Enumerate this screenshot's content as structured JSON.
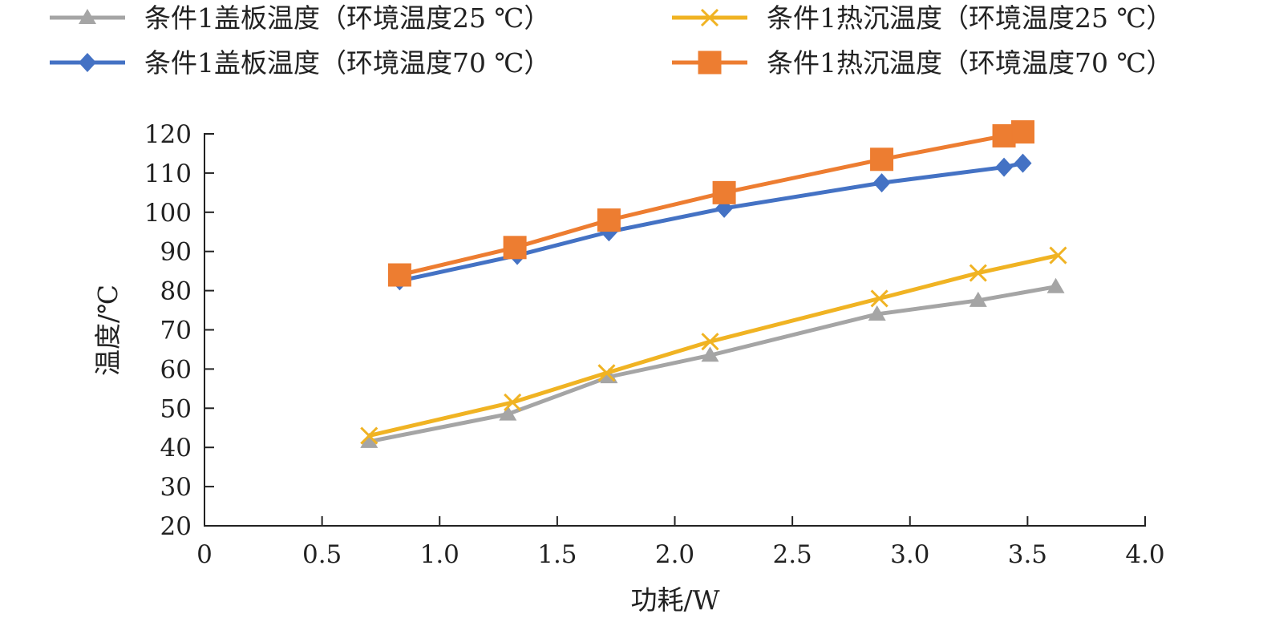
{
  "chart_data": {
    "type": "line",
    "xlabel": "功耗/W",
    "ylabel": "温度/℃",
    "xlim": [
      0,
      4.0
    ],
    "ylim": [
      20,
      120
    ],
    "xticks": [
      "0",
      "0.5",
      "1.0",
      "1.5",
      "2.0",
      "2.5",
      "3.0",
      "3.5",
      "4.0"
    ],
    "yticks": [
      "20",
      "30",
      "40",
      "50",
      "60",
      "70",
      "80",
      "90",
      "100",
      "110",
      "120"
    ],
    "grid": false,
    "legend_position": "top",
    "series": [
      {
        "name": "条件1盖板温度（环境温度25 ℃）",
        "color": "#A5A5A5",
        "marker": "triangle",
        "x": [
          0.7,
          1.29,
          1.72,
          2.15,
          2.86,
          3.29,
          3.62
        ],
        "y": [
          41.5,
          48.5,
          58,
          63.5,
          74,
          77.5,
          81
        ]
      },
      {
        "name": "条件1热沉温度（环境温度25 ℃）",
        "color": "#F0B323",
        "marker": "x",
        "x": [
          0.7,
          1.31,
          1.71,
          2.15,
          2.87,
          3.29,
          3.63
        ],
        "y": [
          43,
          51.5,
          59,
          67,
          78,
          84.5,
          89
        ]
      },
      {
        "name": "条件1盖板温度（环境温度70 ℃）",
        "color": "#4472C4",
        "marker": "diamond",
        "x": [
          0.83,
          1.33,
          1.72,
          2.21,
          2.88,
          3.4,
          3.48
        ],
        "y": [
          82.5,
          89,
          95,
          101,
          107.5,
          111.5,
          112.5
        ]
      },
      {
        "name": "条件1热沉温度（环境温度70 ℃）",
        "color": "#ED7D31",
        "marker": "square",
        "x": [
          0.83,
          1.32,
          1.72,
          2.21,
          2.88,
          3.4,
          3.48
        ],
        "y": [
          84,
          91,
          98,
          105,
          113.5,
          119.5,
          120.5
        ]
      }
    ]
  }
}
